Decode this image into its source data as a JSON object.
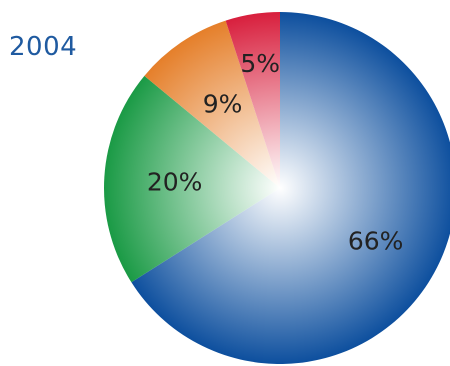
{
  "title": "2004",
  "chart_data": {
    "type": "pie",
    "title": "2004",
    "slices": [
      {
        "label": "66%",
        "value": 66,
        "color": "#0d4f9e"
      },
      {
        "label": "20%",
        "value": 20,
        "color": "#1a9a45"
      },
      {
        "label": "9%",
        "value": 9,
        "color": "#e57f2a"
      },
      {
        "label": "5%",
        "value": 5,
        "color": "#d81f3d"
      }
    ],
    "start": "top, clockwise"
  }
}
